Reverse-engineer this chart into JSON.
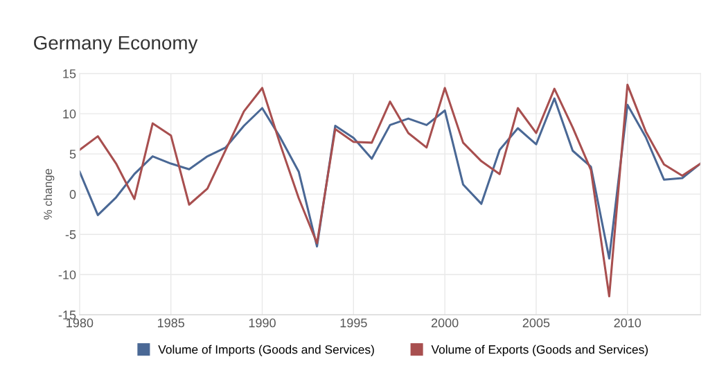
{
  "chart_data": {
    "type": "line",
    "title": "Germany Economy",
    "ylabel": "% change",
    "x": [
      1980,
      1981,
      1982,
      1983,
      1984,
      1985,
      1986,
      1987,
      1988,
      1989,
      1990,
      1991,
      1992,
      1993,
      1994,
      1995,
      1996,
      1997,
      1998,
      1999,
      2000,
      2001,
      2002,
      2003,
      2004,
      2005,
      2006,
      2007,
      2008,
      2009,
      2010,
      2011,
      2012,
      2013,
      2014
    ],
    "series": [
      {
        "name": "Volume of Imports (Goods and Services)",
        "color": "#4a6895",
        "values": [
          2.8,
          -2.6,
          -0.4,
          2.5,
          4.7,
          3.8,
          3.1,
          4.7,
          5.8,
          8.5,
          10.7,
          7.0,
          2.8,
          -6.5,
          8.5,
          7.0,
          4.4,
          8.6,
          9.4,
          8.6,
          10.4,
          1.2,
          -1.2,
          5.5,
          8.2,
          6.2,
          11.9,
          5.4,
          3.4,
          -8.0,
          11.1,
          7.1,
          1.8,
          2.0,
          3.8
        ]
      },
      {
        "name": "Volume of Exports (Goods and Services)",
        "color": "#a84f4f",
        "values": [
          5.5,
          7.2,
          3.8,
          -0.6,
          8.8,
          7.3,
          -1.3,
          0.7,
          5.5,
          10.3,
          13.2,
          6.1,
          -0.5,
          -6.1,
          8.1,
          6.5,
          6.4,
          11.5,
          7.6,
          5.8,
          13.2,
          6.4,
          4.1,
          2.5,
          10.7,
          7.6,
          13.1,
          8.3,
          3.0,
          -12.7,
          13.6,
          7.8,
          3.7,
          2.3,
          3.8
        ]
      }
    ],
    "xlim": [
      1980,
      2014
    ],
    "xticks": [
      1980,
      1985,
      1990,
      1995,
      2000,
      2005,
      2010
    ],
    "ylim": [
      -15,
      15
    ],
    "yticks": [
      -15,
      -10,
      -5,
      0,
      5,
      10,
      15
    ],
    "grid": true,
    "legend": "bottom",
    "marker": "none",
    "line_style": "solid"
  }
}
